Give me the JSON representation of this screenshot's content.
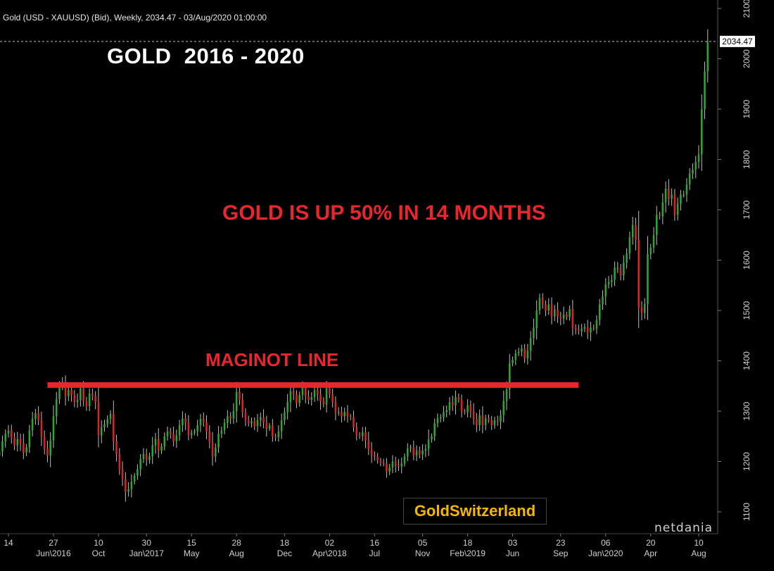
{
  "header": {
    "info": "Gold (USD - XAUUSD) (Bid), Weekly, 2034.47 - 03/Aug/2020 01:00:00",
    "title": "GOLD  2016 - 2020"
  },
  "annotations": {
    "headline": "GOLD IS UP 50% IN 14 MONTHS",
    "line_label": "MAGINOT LINE",
    "brand": "GoldSwitzerland",
    "provider": "netdania"
  },
  "colors": {
    "background": "#000000",
    "up": "#2ea52e",
    "down": "#d82424",
    "annotation": "#e8262b",
    "brand": "#f5b800"
  },
  "chart_data": {
    "type": "candlestick",
    "title": "GOLD  2016 - 2020",
    "last_price": "2034.47",
    "ylim": [
      1075,
      2105
    ],
    "y_ticks": [
      1100,
      1200,
      1300,
      1400,
      1500,
      1600,
      1700,
      1800,
      1900,
      2000,
      2100
    ],
    "x_ticks": [
      {
        "date": "2016-03-14",
        "day": "14",
        "month": ""
      },
      {
        "date": "2016-06-27",
        "day": "27",
        "month": "Jun\\2016"
      },
      {
        "date": "2016-10-10",
        "day": "10",
        "month": "Oct"
      },
      {
        "date": "2017-01-30",
        "day": "30",
        "month": "Jan\\2017"
      },
      {
        "date": "2017-05-15",
        "day": "15",
        "month": "May"
      },
      {
        "date": "2017-08-28",
        "day": "28",
        "month": "Aug"
      },
      {
        "date": "2017-12-18",
        "day": "18",
        "month": "Dec"
      },
      {
        "date": "2018-04-02",
        "day": "02",
        "month": "Apr\\2018"
      },
      {
        "date": "2018-07-16",
        "day": "16",
        "month": "Jul"
      },
      {
        "date": "2018-11-05",
        "day": "05",
        "month": "Nov"
      },
      {
        "date": "2019-02-18",
        "day": "18",
        "month": "Feb\\2019"
      },
      {
        "date": "2019-06-03",
        "day": "03",
        "month": "Jun"
      },
      {
        "date": "2019-09-23",
        "day": "23",
        "month": "Sep"
      },
      {
        "date": "2020-01-06",
        "day": "06",
        "month": "Jan\\2020"
      },
      {
        "date": "2020-04-20",
        "day": "20",
        "month": "Apr"
      },
      {
        "date": "2020-08-10",
        "day": "10",
        "month": "Aug"
      }
    ],
    "maginot_line": {
      "y": 1352,
      "from": "2016-06-13",
      "to": "2019-11-04"
    },
    "closes": {
      "start": "2016-02-22",
      "interval_days": 7,
      "values": [
        1220,
        1240,
        1255,
        1262,
        1248,
        1232,
        1245,
        1236,
        1218,
        1228,
        1262,
        1285,
        1296,
        1282,
        1250,
        1226,
        1212,
        1242,
        1290,
        1324,
        1350,
        1358,
        1330,
        1342,
        1332,
        1318,
        1322,
        1345,
        1320,
        1310,
        1335,
        1330,
        1318,
        1252,
        1268,
        1274,
        1284,
        1295,
        1240,
        1215,
        1185,
        1165,
        1140,
        1145,
        1160,
        1172,
        1185,
        1205,
        1215,
        1203,
        1210,
        1232,
        1245,
        1222,
        1230,
        1250,
        1260,
        1255,
        1240,
        1252,
        1272,
        1285,
        1278,
        1252,
        1257,
        1260,
        1272,
        1285,
        1278,
        1260,
        1238,
        1210,
        1228,
        1255,
        1262,
        1277,
        1290,
        1286,
        1300,
        1338,
        1323,
        1298,
        1282,
        1276,
        1280,
        1270,
        1282,
        1288,
        1277,
        1265,
        1272,
        1250,
        1248,
        1260,
        1282,
        1298,
        1318,
        1340,
        1333,
        1316,
        1332,
        1348,
        1330,
        1322,
        1328,
        1342,
        1333,
        1320,
        1313,
        1346,
        1333,
        1318,
        1298,
        1298,
        1290,
        1298,
        1290,
        1288,
        1268,
        1253,
        1250,
        1258,
        1242,
        1225,
        1212,
        1210,
        1202,
        1198,
        1196,
        1180,
        1188,
        1200,
        1192,
        1190,
        1196,
        1210,
        1226,
        1228,
        1212,
        1222,
        1214,
        1222,
        1225,
        1244,
        1250,
        1276,
        1286,
        1288,
        1298,
        1302,
        1318,
        1312,
        1328,
        1322,
        1300,
        1298,
        1312,
        1300,
        1284,
        1272,
        1292,
        1272,
        1286,
        1282,
        1272,
        1282,
        1279,
        1292,
        1320,
        1343,
        1395,
        1402,
        1415,
        1418,
        1424,
        1405,
        1420,
        1445,
        1465,
        1500,
        1525,
        1512,
        1500,
        1512,
        1488,
        1502,
        1488,
        1484,
        1492,
        1487,
        1503,
        1466,
        1462,
        1459,
        1464,
        1467,
        1456,
        1466,
        1464,
        1481,
        1512,
        1528,
        1552,
        1557,
        1561,
        1585,
        1585,
        1570,
        1595,
        1613,
        1645,
        1670,
        1640,
        1506,
        1495,
        1513,
        1612,
        1625,
        1650,
        1690,
        1687,
        1715,
        1742,
        1722,
        1730,
        1690,
        1712,
        1730,
        1730,
        1750,
        1772,
        1780,
        1795,
        1810,
        1900,
        1975,
        2034
      ]
    }
  }
}
